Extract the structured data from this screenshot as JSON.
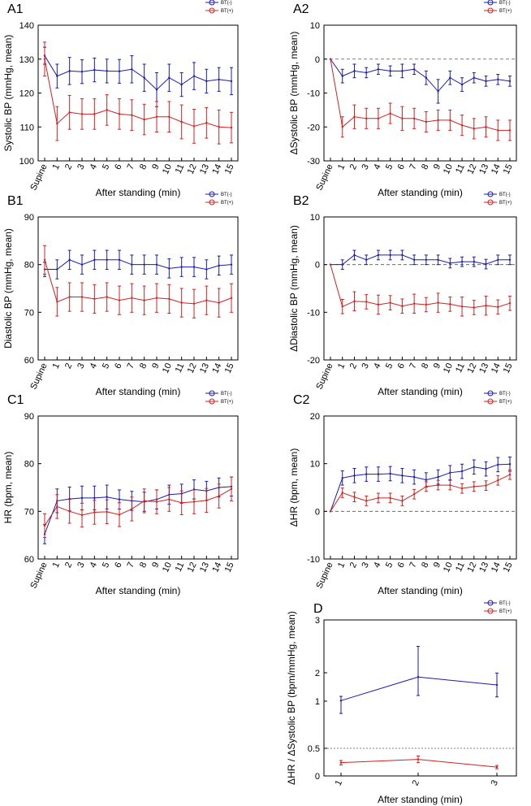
{
  "colors": {
    "bt_neg": "#1a1ab4",
    "bt_pos": "#d42020",
    "axis": "#000000",
    "refline": "#555555"
  },
  "legend": {
    "bt_neg": "BT(-)",
    "bt_pos": "BT(+)"
  },
  "chart_data": [
    {
      "id": "A1",
      "panel_label": "A1",
      "type": "line",
      "xlabel": "After standing (min)",
      "ylabel": "Systolic BP (mmHg, mean)",
      "xticks": [
        "Supine",
        "1",
        "2",
        "3",
        "4",
        "5",
        "6",
        "7",
        "8",
        "9",
        "10",
        "11",
        "12",
        "13",
        "14",
        "15"
      ],
      "ylim": [
        100,
        140
      ],
      "yticks": [
        "100",
        "110",
        "120",
        "130",
        "140"
      ],
      "ref_line": null,
      "series": [
        {
          "name": "BT(-)",
          "values": [
            131,
            125,
            126.5,
            126.3,
            126.8,
            126.5,
            126.4,
            127,
            124.5,
            121,
            124.5,
            122.5,
            125,
            123.5,
            124,
            123.5
          ],
          "err": [
            2.5,
            3.5,
            4,
            3.5,
            3.5,
            3.5,
            3.5,
            4,
            4,
            5,
            4,
            3.5,
            4,
            3.5,
            3.5,
            4
          ]
        },
        {
          "name": "BT(+)",
          "values": [
            130,
            111,
            114.3,
            113.8,
            113.8,
            115,
            113.8,
            113.5,
            112.2,
            113,
            113,
            111.5,
            110.2,
            111.2,
            110,
            109.8
          ],
          "err": [
            5,
            5,
            5,
            4.5,
            4.5,
            4.5,
            4.5,
            4.5,
            4.5,
            4.5,
            4.5,
            5,
            5,
            4.5,
            5,
            4.5
          ]
        }
      ]
    },
    {
      "id": "A2",
      "panel_label": "A2",
      "type": "line",
      "xlabel": "After standing (min)",
      "ylabel": "ΔSystolic BP (mmHg, mean)",
      "xticks": [
        "Supine",
        "1",
        "2",
        "3",
        "4",
        "5",
        "6",
        "7",
        "8",
        "9",
        "10",
        "11",
        "12",
        "13",
        "14",
        "15"
      ],
      "ylim": [
        -30,
        10
      ],
      "yticks": [
        "-30",
        "-20",
        "-10",
        "0",
        "10"
      ],
      "ref_line": 0,
      "series": [
        {
          "name": "BT(-)",
          "values": [
            0,
            -5,
            -3.5,
            -4,
            -3,
            -3.5,
            -3.5,
            -3,
            -5.5,
            -9.5,
            -5.5,
            -7.5,
            -5.5,
            -6.5,
            -6,
            -6.5
          ],
          "err": [
            0,
            2,
            2,
            1.5,
            1.5,
            1.5,
            2,
            1.5,
            2,
            3.5,
            2,
            2,
            1.5,
            1.5,
            1.5,
            1.5
          ]
        },
        {
          "name": "BT(+)",
          "values": [
            0,
            -20,
            -17,
            -17.5,
            -17.5,
            -16,
            -17.5,
            -17.5,
            -18.5,
            -18,
            -18,
            -19.5,
            -20.5,
            -20,
            -21,
            -21
          ],
          "err": [
            0,
            3,
            3.5,
            3,
            3,
            3,
            3.5,
            3,
            3,
            3,
            3,
            3,
            3,
            3,
            3,
            3
          ]
        }
      ]
    },
    {
      "id": "B1",
      "panel_label": "B1",
      "type": "line",
      "xlabel": "After standing (min)",
      "ylabel": "Diastolic BP (mmHg, mean)",
      "xticks": [
        "Supine",
        "1",
        "2",
        "3",
        "4",
        "5",
        "6",
        "7",
        "8",
        "9",
        "10",
        "11",
        "12",
        "13",
        "14",
        "15"
      ],
      "ylim": [
        60,
        90
      ],
      "yticks": [
        "60",
        "70",
        "80",
        "90"
      ],
      "ref_line": null,
      "series": [
        {
          "name": "BT(-)",
          "values": [
            79,
            79,
            81,
            80,
            81,
            81,
            81,
            80,
            80,
            80,
            79.2,
            79.5,
            79.5,
            79,
            79.8,
            80
          ],
          "err": [
            1.5,
            2,
            2,
            2,
            2,
            2,
            2,
            2,
            2,
            2,
            2,
            2,
            2,
            2,
            2,
            2
          ]
        },
        {
          "name": "BT(+)",
          "values": [
            81,
            72.2,
            73.2,
            73.2,
            72.8,
            73.2,
            72.5,
            73,
            72.5,
            73,
            72.8,
            72,
            71.8,
            72.5,
            72,
            73
          ],
          "err": [
            3,
            3,
            3,
            3,
            3,
            3,
            3,
            3,
            3,
            3,
            3,
            3,
            3,
            3,
            3,
            3
          ]
        }
      ]
    },
    {
      "id": "B2",
      "panel_label": "B2",
      "type": "line",
      "xlabel": "After standing (min)",
      "ylabel": "ΔDiastolic BP (mmHg, mean)",
      "xticks": [
        "Supine",
        "1",
        "2",
        "3",
        "4",
        "5",
        "6",
        "7",
        "8",
        "9",
        "10",
        "11",
        "12",
        "13",
        "14",
        "15"
      ],
      "ylim": [
        -20,
        10
      ],
      "yticks": [
        "-20",
        "-10",
        "0",
        "10"
      ],
      "ref_line": 0,
      "series": [
        {
          "name": "BT(-)",
          "values": [
            0,
            0,
            2,
            1,
            2,
            2,
            2,
            1,
            1,
            1,
            0.3,
            0.6,
            0.6,
            0.1,
            1,
            1
          ],
          "err": [
            0,
            1,
            1,
            1,
            1,
            1,
            1,
            1,
            1,
            1,
            1,
            1,
            1,
            1,
            1,
            1
          ]
        },
        {
          "name": "BT(+)",
          "values": [
            0,
            -8.8,
            -7.7,
            -7.8,
            -8.4,
            -8,
            -8.7,
            -8.2,
            -8.4,
            -8,
            -8.3,
            -8.8,
            -9,
            -8.6,
            -8.9,
            -8.1
          ],
          "err": [
            0,
            1.5,
            2,
            1.5,
            2,
            1.5,
            1.5,
            2,
            1.5,
            2,
            1.5,
            2,
            1.5,
            2,
            1.5,
            1.5
          ]
        }
      ]
    },
    {
      "id": "C1",
      "panel_label": "C1",
      "type": "line",
      "xlabel": "After standing (min)",
      "ylabel": "HR (bpm, mean)",
      "xticks": [
        "Supine",
        "1",
        "2",
        "3",
        "4",
        "5",
        "6",
        "7",
        "8",
        "9",
        "10",
        "11",
        "12",
        "13",
        "14",
        "15"
      ],
      "ylim": [
        60,
        90
      ],
      "yticks": [
        "60",
        "70",
        "80",
        "90"
      ],
      "ref_line": null,
      "series": [
        {
          "name": "BT(-)",
          "values": [
            65.2,
            72.2,
            72.6,
            72.8,
            72.8,
            73,
            72.5,
            72.2,
            72,
            72.5,
            73.5,
            73.7,
            74.6,
            74.3,
            75,
            75.2
          ],
          "err": [
            2,
            2.5,
            2.5,
            2.5,
            2.5,
            2.5,
            2,
            2,
            2,
            2,
            2,
            2,
            2,
            2,
            2,
            2
          ]
        },
        {
          "name": "BT(+)",
          "values": [
            67,
            71,
            70,
            69.2,
            69.8,
            69.9,
            69.3,
            70.5,
            72.2,
            72,
            72.5,
            71.8,
            72,
            72.3,
            73.2,
            74.7
          ],
          "err": [
            2.5,
            2.5,
            2.5,
            2.5,
            2.5,
            2.5,
            2.5,
            2.5,
            2.5,
            2.5,
            2.5,
            2.5,
            2.5,
            2.5,
            2.5,
            2.5
          ]
        }
      ]
    },
    {
      "id": "C2",
      "panel_label": "C2",
      "type": "line",
      "xlabel": "After standing (min)",
      "ylabel": "ΔHR (bpm, mean)",
      "xticks": [
        "Supine",
        "1",
        "2",
        "3",
        "4",
        "5",
        "6",
        "7",
        "8",
        "9",
        "10",
        "11",
        "12",
        "13",
        "14",
        "15"
      ],
      "ylim": [
        -10,
        20
      ],
      "yticks": [
        "-10",
        "0",
        "10",
        "20"
      ],
      "ref_line": 0,
      "series": [
        {
          "name": "BT(-)",
          "values": [
            0,
            7,
            7.5,
            7.8,
            7.8,
            7.9,
            7.5,
            7.2,
            6.6,
            7.2,
            8.1,
            8.4,
            9.3,
            8.9,
            9.8,
            9.9
          ],
          "err": [
            0,
            1.5,
            1.5,
            1.5,
            1.5,
            1.5,
            1.5,
            1.5,
            1.5,
            1.5,
            1.5,
            1.5,
            1.5,
            1.5,
            1.5,
            1.5
          ]
        },
        {
          "name": "BT(+)",
          "values": [
            0,
            3.9,
            3,
            2.2,
            2.8,
            2.8,
            2.2,
            3.6,
            5.2,
            5.5,
            5.5,
            4.8,
            5.2,
            5.4,
            6.5,
            7.7
          ],
          "err": [
            0,
            1,
            1,
            1,
            1,
            1,
            1,
            1,
            1,
            1,
            1,
            1,
            1,
            1,
            1,
            1
          ]
        }
      ]
    },
    {
      "id": "D",
      "panel_label": "D",
      "type": "line",
      "xlabel": "After standing (min)",
      "ylabel": "ΔHR / ΔSystolic BP (bpm/mmHg, mean)",
      "xticks": [
        "1",
        "2",
        "3"
      ],
      "ylim": [
        0,
        3
      ],
      "yticks": [
        "0",
        "0.5",
        "1",
        "2",
        "3"
      ],
      "ref_line": 0.5,
      "series": [
        {
          "name": "BT(-)",
          "values": [
            1.02,
            1.85,
            1.57
          ],
          "err": [
            0.15,
            0.65,
            0.42
          ]
        },
        {
          "name": "BT(+)",
          "values": [
            0.24,
            0.3,
            0.16
          ],
          "err": [
            0.04,
            0.06,
            0.03
          ]
        }
      ]
    }
  ]
}
